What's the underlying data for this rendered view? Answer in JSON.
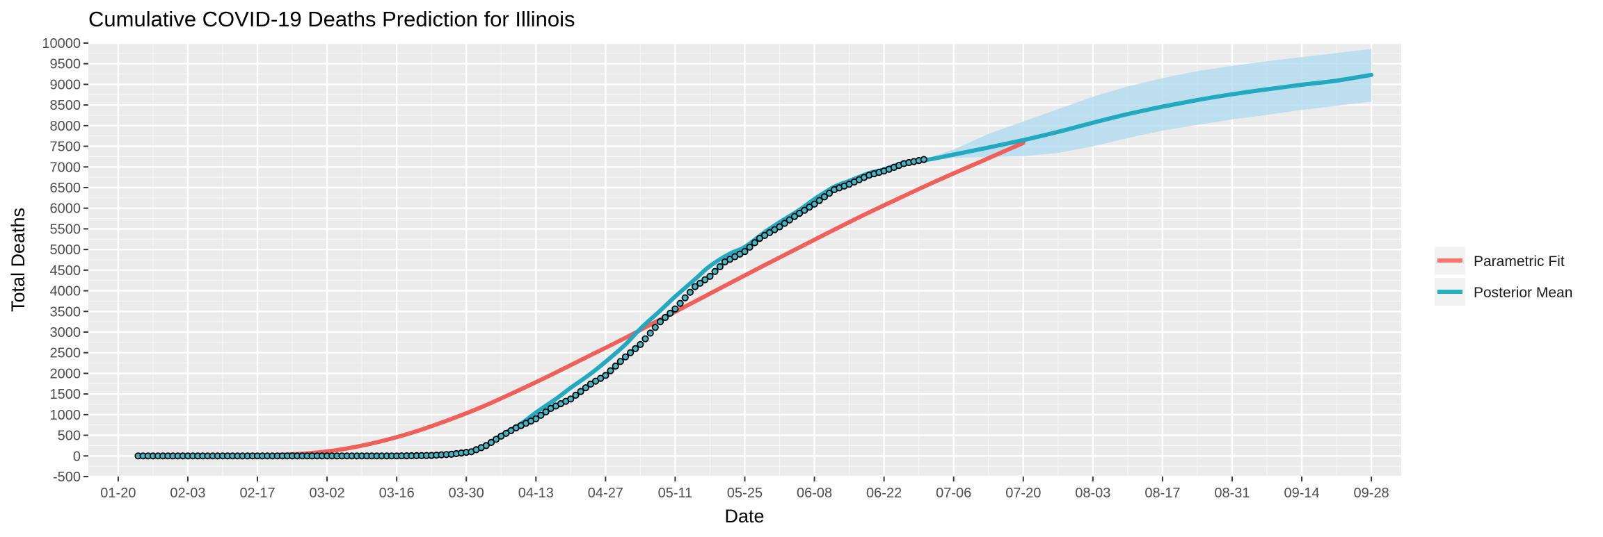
{
  "chart_data": {
    "type": "line",
    "title": "Cumulative COVID-19 Deaths Prediction for Illinois",
    "xlabel": "Date",
    "ylabel": "Total Deaths",
    "x_type": "date",
    "year": 2020,
    "xlim": [
      "2020-01-14",
      "2020-10-04"
    ],
    "ylim": [
      -500,
      10000
    ],
    "y_ticks": [
      -500,
      0,
      500,
      1000,
      1500,
      2000,
      2500,
      3000,
      3500,
      4000,
      4500,
      5000,
      5500,
      6000,
      6500,
      7000,
      7500,
      8000,
      8500,
      9000,
      9500,
      10000
    ],
    "x_ticks": [
      {
        "date": "2020-01-20",
        "label": "01-20"
      },
      {
        "date": "2020-02-03",
        "label": "02-03"
      },
      {
        "date": "2020-02-17",
        "label": "02-17"
      },
      {
        "date": "2020-03-02",
        "label": "03-02"
      },
      {
        "date": "2020-03-16",
        "label": "03-16"
      },
      {
        "date": "2020-03-30",
        "label": "03-30"
      },
      {
        "date": "2020-04-13",
        "label": "04-13"
      },
      {
        "date": "2020-04-27",
        "label": "04-27"
      },
      {
        "date": "2020-05-11",
        "label": "05-11"
      },
      {
        "date": "2020-05-25",
        "label": "05-25"
      },
      {
        "date": "2020-06-08",
        "label": "06-08"
      },
      {
        "date": "2020-06-22",
        "label": "06-22"
      },
      {
        "date": "2020-07-06",
        "label": "07-06"
      },
      {
        "date": "2020-07-20",
        "label": "07-20"
      },
      {
        "date": "2020-08-03",
        "label": "08-03"
      },
      {
        "date": "2020-08-17",
        "label": "08-17"
      },
      {
        "date": "2020-08-31",
        "label": "08-31"
      },
      {
        "date": "2020-09-14",
        "label": "09-14"
      },
      {
        "date": "2020-09-28",
        "label": "09-28"
      }
    ],
    "grid": true,
    "background_color": "#EBEBEB",
    "legend": {
      "position": "right",
      "entries": [
        {
          "name": "Parametric Fit",
          "color": "#F8766D"
        },
        {
          "name": "Posterior Mean",
          "color": "#1FB3C4"
        }
      ]
    },
    "colors": {
      "parametric": "#F0605A",
      "posterior": "#22A9BF",
      "band": "#AAD8EE",
      "points_fill": "#3FB8C8",
      "points_stroke": "#000000"
    },
    "series": [
      {
        "name": "Parametric Fit",
        "x": [
          "2020-02-20",
          "2020-02-27",
          "2020-03-05",
          "2020-03-12",
          "2020-03-19",
          "2020-03-26",
          "2020-04-02",
          "2020-04-09",
          "2020-04-16",
          "2020-04-23",
          "2020-04-30",
          "2020-05-07",
          "2020-05-14",
          "2020-05-21",
          "2020-05-28",
          "2020-06-04",
          "2020-06-11",
          "2020-06-18",
          "2020-06-25",
          "2020-07-02",
          "2020-07-09",
          "2020-07-16",
          "2020-07-20"
        ],
        "y": [
          20,
          60,
          160,
          330,
          560,
          850,
          1180,
          1560,
          1960,
          2380,
          2800,
          3240,
          3680,
          4120,
          4560,
          4990,
          5420,
          5840,
          6240,
          6630,
          7000,
          7370,
          7580
        ]
      },
      {
        "name": "Posterior Mean",
        "x": [
          "2020-03-30",
          "2020-04-03",
          "2020-04-06",
          "2020-04-10",
          "2020-04-13",
          "2020-04-17",
          "2020-04-20",
          "2020-04-24",
          "2020-04-27",
          "2020-05-01",
          "2020-05-04",
          "2020-05-08",
          "2020-05-11",
          "2020-05-15",
          "2020-05-18",
          "2020-05-22",
          "2020-05-25",
          "2020-05-29",
          "2020-06-01",
          "2020-06-05",
          "2020-06-08",
          "2020-06-12",
          "2020-06-15",
          "2020-06-19",
          "2020-06-22",
          "2020-06-26",
          "2020-07-01",
          "2020-07-06",
          "2020-07-13",
          "2020-07-20",
          "2020-07-27",
          "2020-08-03",
          "2020-08-10",
          "2020-08-17",
          "2020-08-24",
          "2020-08-31",
          "2020-09-07",
          "2020-09-14",
          "2020-09-21",
          "2020-09-28"
        ],
        "y": [
          80,
          260,
          500,
          780,
          1050,
          1380,
          1650,
          1990,
          2280,
          2700,
          3080,
          3520,
          3860,
          4280,
          4600,
          4900,
          5060,
          5420,
          5660,
          5960,
          6220,
          6520,
          6660,
          6850,
          6940,
          7100,
          7180,
          7300,
          7470,
          7650,
          7850,
          8070,
          8280,
          8460,
          8620,
          8760,
          8880,
          8990,
          9090,
          9230
        ]
      }
    ],
    "band": {
      "name": "Posterior interval",
      "x": [
        "2020-07-01",
        "2020-07-06",
        "2020-07-13",
        "2020-07-20",
        "2020-07-27",
        "2020-08-03",
        "2020-08-10",
        "2020-08-17",
        "2020-08-24",
        "2020-08-31",
        "2020-09-07",
        "2020-09-14",
        "2020-09-21",
        "2020-09-28"
      ],
      "lower": [
        7150,
        7220,
        7240,
        7260,
        7340,
        7500,
        7700,
        7880,
        8020,
        8150,
        8260,
        8380,
        8480,
        8580
      ],
      "upper": [
        7220,
        7420,
        7800,
        8100,
        8400,
        8700,
        8950,
        9150,
        9320,
        9450,
        9560,
        9660,
        9760,
        9860
      ]
    },
    "observed": {
      "name": "Observed deaths",
      "start": "2020-01-24",
      "end": "2020-06-30",
      "knots": [
        [
          "2020-01-24",
          0
        ],
        [
          "2020-03-16",
          0
        ],
        [
          "2020-03-23",
          12
        ],
        [
          "2020-03-27",
          40
        ],
        [
          "2020-03-31",
          100
        ],
        [
          "2020-04-03",
          250
        ],
        [
          "2020-04-06",
          480
        ],
        [
          "2020-04-09",
          680
        ],
        [
          "2020-04-13",
          900
        ],
        [
          "2020-04-16",
          1150
        ],
        [
          "2020-04-20",
          1380
        ],
        [
          "2020-04-24",
          1740
        ],
        [
          "2020-04-27",
          1950
        ],
        [
          "2020-05-01",
          2400
        ],
        [
          "2020-05-04",
          2700
        ],
        [
          "2020-05-08",
          3250
        ],
        [
          "2020-05-11",
          3560
        ],
        [
          "2020-05-15",
          4100
        ],
        [
          "2020-05-18",
          4350
        ],
        [
          "2020-05-21",
          4700
        ],
        [
          "2020-05-25",
          4950
        ],
        [
          "2020-05-28",
          5270
        ],
        [
          "2020-06-01",
          5550
        ],
        [
          "2020-06-04",
          5800
        ],
        [
          "2020-06-08",
          6100
        ],
        [
          "2020-06-12",
          6450
        ],
        [
          "2020-06-15",
          6580
        ],
        [
          "2020-06-19",
          6800
        ],
        [
          "2020-06-22",
          6900
        ],
        [
          "2020-06-26",
          7080
        ],
        [
          "2020-06-30",
          7180
        ]
      ]
    }
  }
}
